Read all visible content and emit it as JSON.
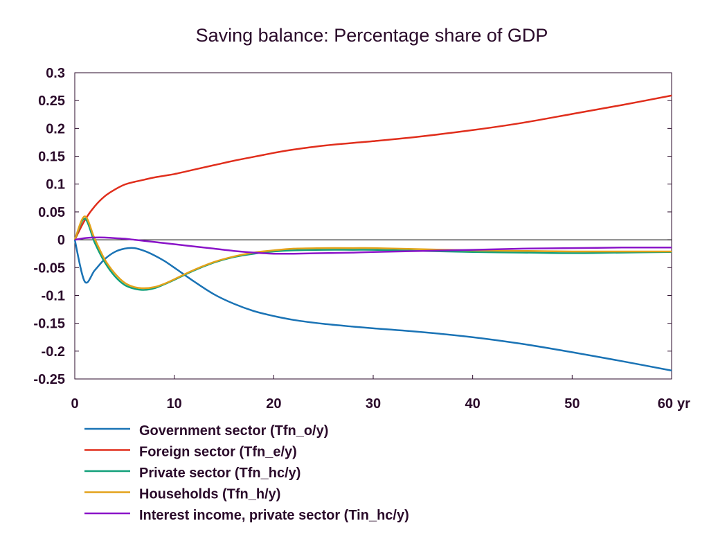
{
  "chart_data": {
    "type": "line",
    "title": "Saving balance: Percentage share of GDP",
    "x_unit": "yr",
    "xlim": [
      0,
      60
    ],
    "ylim": [
      -0.25,
      0.3
    ],
    "x_ticks": [
      0,
      10,
      20,
      30,
      40,
      50,
      60
    ],
    "y_ticks": [
      0.3,
      0.25,
      0.2,
      0.15,
      0.1,
      0.05,
      0,
      -0.05,
      -0.1,
      -0.15,
      -0.2,
      -0.25
    ],
    "zero_line": true,
    "grid": false,
    "legend_position": "bottom-left",
    "x": [
      0,
      1,
      2,
      3,
      4,
      5,
      6,
      7,
      8,
      9,
      10,
      12,
      14,
      16,
      18,
      20,
      22,
      25,
      28,
      30,
      35,
      40,
      45,
      50,
      55,
      60
    ],
    "series": [
      {
        "name": "Government sector (Tfn_o/y)",
        "color": "#1a73b5",
        "values": [
          0,
          -0.075,
          -0.055,
          -0.035,
          -0.022,
          -0.016,
          -0.015,
          -0.02,
          -0.028,
          -0.038,
          -0.05,
          -0.075,
          -0.098,
          -0.115,
          -0.128,
          -0.137,
          -0.144,
          -0.151,
          -0.156,
          -0.159,
          -0.166,
          -0.175,
          -0.187,
          -0.202,
          -0.218,
          -0.235
        ]
      },
      {
        "name": "Foreign sector (Tfn_e/y)",
        "color": "#e02e1c",
        "values": [
          0,
          0.035,
          0.06,
          0.078,
          0.09,
          0.099,
          0.104,
          0.108,
          0.112,
          0.115,
          0.118,
          0.126,
          0.134,
          0.142,
          0.149,
          0.156,
          0.162,
          0.169,
          0.174,
          0.177,
          0.186,
          0.197,
          0.21,
          0.226,
          0.242,
          0.259
        ]
      },
      {
        "name": "Private sector (Tfn_hc/y)",
        "color": "#12a07a",
        "values": [
          0,
          0.038,
          -0.005,
          -0.04,
          -0.065,
          -0.081,
          -0.088,
          -0.09,
          -0.087,
          -0.08,
          -0.072,
          -0.055,
          -0.041,
          -0.031,
          -0.025,
          -0.021,
          -0.019,
          -0.018,
          -0.018,
          -0.018,
          -0.02,
          -0.022,
          -0.023,
          -0.024,
          -0.023,
          -0.022
        ]
      },
      {
        "name": "Households (Tfn_h/y)",
        "color": "#e3a21a",
        "values": [
          0,
          0.042,
          0.002,
          -0.035,
          -0.06,
          -0.077,
          -0.085,
          -0.087,
          -0.085,
          -0.079,
          -0.071,
          -0.054,
          -0.04,
          -0.03,
          -0.023,
          -0.019,
          -0.016,
          -0.015,
          -0.015,
          -0.015,
          -0.017,
          -0.019,
          -0.02,
          -0.021,
          -0.021,
          -0.021
        ]
      },
      {
        "name": "Interest income, private sector (Tin_hc/y)",
        "color": "#8a14c8",
        "values": [
          0,
          0.003,
          0.004,
          0.004,
          0.003,
          0.002,
          0.0,
          -0.002,
          -0.004,
          -0.006,
          -0.008,
          -0.012,
          -0.016,
          -0.02,
          -0.023,
          -0.025,
          -0.025,
          -0.024,
          -0.023,
          -0.022,
          -0.02,
          -0.018,
          -0.016,
          -0.015,
          -0.014,
          -0.014
        ]
      }
    ]
  }
}
